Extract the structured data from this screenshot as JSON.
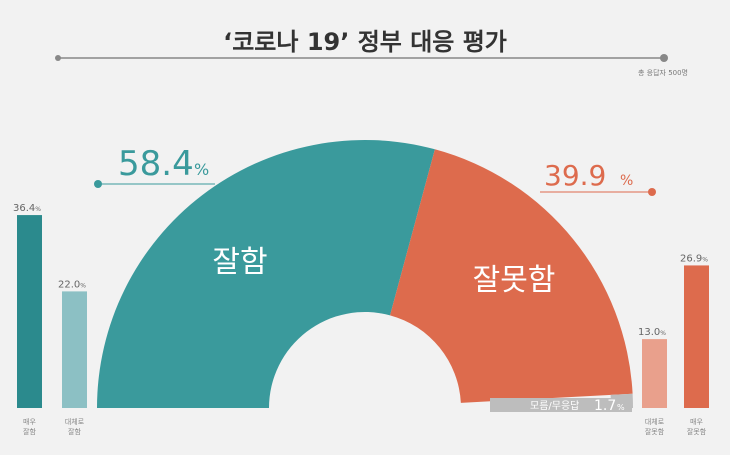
{
  "title": "‘코로나 19’ 정부 대응 평가",
  "respondents": "총 응답자 500명",
  "chart_data": {
    "type": "pie",
    "style": "half-donut",
    "slices": [
      {
        "name": "잘함",
        "value": 58.4,
        "label": "58.4",
        "color": "#3a9a9c"
      },
      {
        "name": "잘못함",
        "value": 39.9,
        "label": "39.9",
        "color": "#dd6b4d"
      },
      {
        "name": "모름/무응답",
        "value": 1.7,
        "label": "1.7",
        "color": "#bdbdbd"
      }
    ],
    "bars": [
      {
        "name": "매우\n잘함",
        "line1": "매우",
        "line2": "잘함",
        "value": 36.4,
        "label": "36.4",
        "color": "#2b8a8d"
      },
      {
        "name": "대체로 잘함",
        "line1": "대체로",
        "line2": "잘함",
        "value": 22.0,
        "label": "22.0",
        "color": "#8cc0c4"
      },
      {
        "name": "대체로 잘못함",
        "line1": "대체로",
        "line2": "잘못함",
        "value": 13.0,
        "label": "13.0",
        "color": "#e9a08c"
      },
      {
        "name": "매우 잘못함",
        "line1": "매우",
        "line2": "잘못함",
        "value": 26.9,
        "label": "26.9",
        "color": "#dd6b4d"
      }
    ],
    "unit": "%"
  }
}
